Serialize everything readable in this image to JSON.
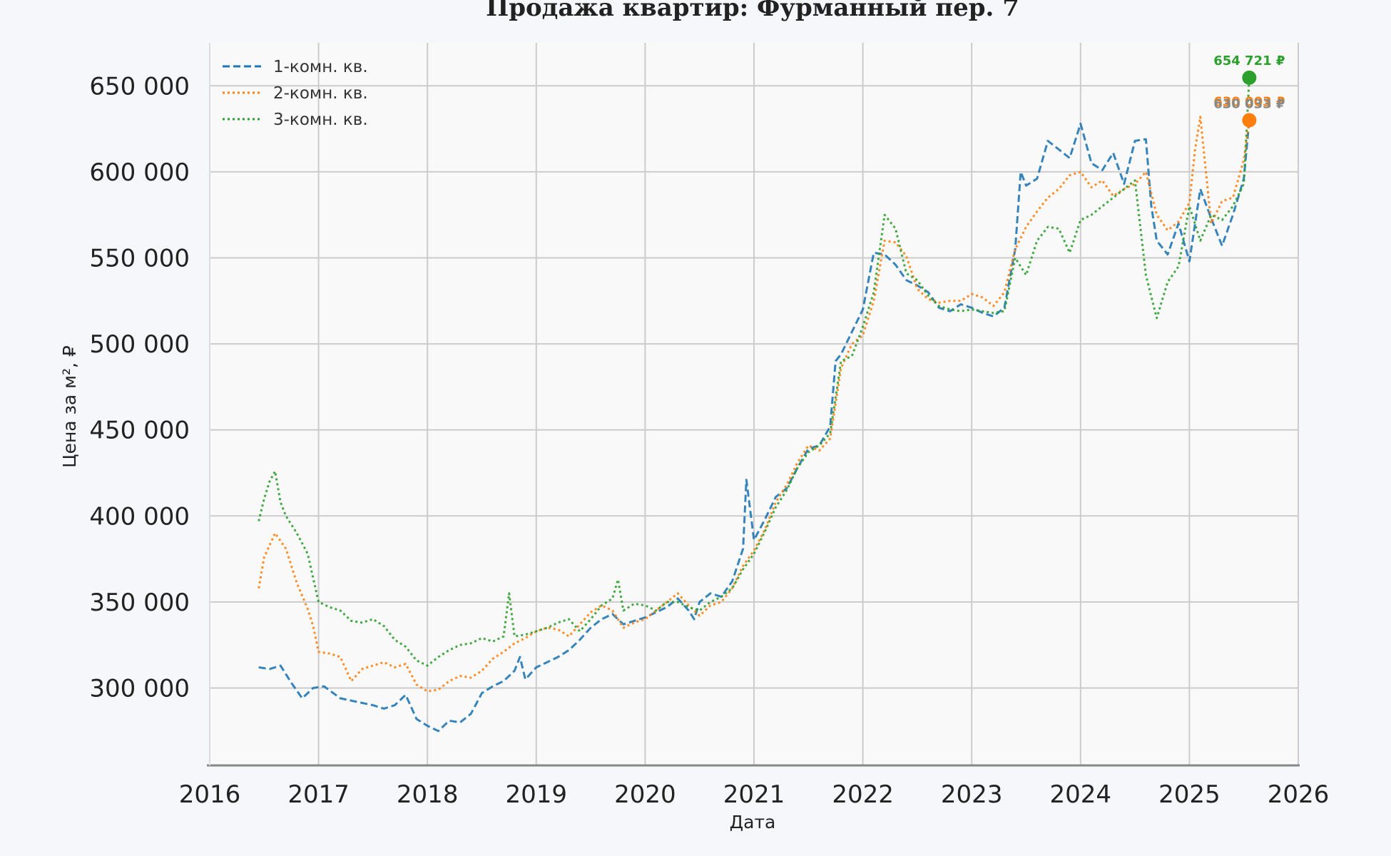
{
  "chart_data": {
    "type": "line",
    "title": "Продажа квартир: Фурманный пер. 7",
    "xlabel": "Дата",
    "ylabel": "Цена за м², ₽",
    "xlim": [
      2016,
      2026
    ],
    "ylim": [
      255000,
      675000
    ],
    "x_ticks": [
      2016,
      2017,
      2018,
      2019,
      2020,
      2021,
      2022,
      2023,
      2024,
      2025,
      2026
    ],
    "x_tick_labels": [
      "2016",
      "2017",
      "2018",
      "2019",
      "2020",
      "2021",
      "2022",
      "2023",
      "2024",
      "2025",
      "2026"
    ],
    "y_ticks": [
      300000,
      350000,
      400000,
      450000,
      500000,
      550000,
      600000,
      650000
    ],
    "y_tick_labels": [
      "300 000",
      "350 000",
      "400 000",
      "450 000",
      "500 000",
      "550 000",
      "600 000",
      "650 000"
    ],
    "grid": true,
    "legend_position": "top-left",
    "series": [
      {
        "name": "1-комн. кв.",
        "color": "#1f77b4",
        "style": "dashed",
        "x": [
          2016.45,
          2016.55,
          2016.65,
          2016.75,
          2016.85,
          2016.95,
          2017.05,
          2017.2,
          2017.35,
          2017.5,
          2017.6,
          2017.7,
          2017.8,
          2017.9,
          2018.0,
          2018.1,
          2018.2,
          2018.3,
          2018.4,
          2018.5,
          2018.6,
          2018.7,
          2018.8,
          2018.85,
          2018.9,
          2019.0,
          2019.1,
          2019.2,
          2019.3,
          2019.4,
          2019.5,
          2019.6,
          2019.7,
          2019.8,
          2019.9,
          2020.0,
          2020.1,
          2020.2,
          2020.3,
          2020.4,
          2020.45,
          2020.5,
          2020.6,
          2020.7,
          2020.8,
          2020.9,
          2020.93,
          2021.0,
          2021.1,
          2021.2,
          2021.3,
          2021.4,
          2021.5,
          2021.6,
          2021.7,
          2021.75,
          2021.8,
          2021.9,
          2022.0,
          2022.1,
          2022.2,
          2022.3,
          2022.4,
          2022.5,
          2022.6,
          2022.7,
          2022.8,
          2022.9,
          2023.0,
          2023.1,
          2023.2,
          2023.3,
          2023.4,
          2023.45,
          2023.5,
          2023.6,
          2023.7,
          2023.8,
          2023.9,
          2024.0,
          2024.1,
          2024.2,
          2024.3,
          2024.4,
          2024.5,
          2024.6,
          2024.65,
          2024.7,
          2024.8,
          2024.9,
          2025.0,
          2025.1,
          2025.2,
          2025.3,
          2025.4,
          2025.5,
          2025.55
        ],
        "values": [
          312000,
          311000,
          313000,
          303000,
          294000,
          300000,
          301000,
          294000,
          292000,
          290000,
          288000,
          290000,
          296000,
          282000,
          278000,
          275000,
          281000,
          280000,
          285000,
          297000,
          301000,
          304000,
          310000,
          318000,
          305000,
          312000,
          315000,
          318000,
          322000,
          328000,
          335000,
          340000,
          343000,
          337000,
          339000,
          341000,
          344000,
          347000,
          352000,
          345000,
          340000,
          350000,
          355000,
          353000,
          362000,
          381000,
          421000,
          386000,
          398000,
          411000,
          416000,
          428000,
          439000,
          441000,
          452000,
          490000,
          494000,
          507000,
          520000,
          553000,
          552000,
          546000,
          537000,
          534000,
          530000,
          521000,
          519000,
          523000,
          521000,
          518000,
          516000,
          521000,
          555000,
          600000,
          592000,
          596000,
          618000,
          613000,
          608000,
          628000,
          605000,
          601000,
          611000,
          593000,
          618000,
          619000,
          580000,
          560000,
          552000,
          570000,
          548000,
          590000,
          573000,
          557000,
          575000,
          596000,
          630000
        ]
      },
      {
        "name": "2-комн. кв.",
        "color": "#ff7f0e",
        "style": "dotted",
        "x": [
          2016.45,
          2016.5,
          2016.6,
          2016.7,
          2016.8,
          2016.9,
          2016.95,
          2017.0,
          2017.1,
          2017.2,
          2017.3,
          2017.4,
          2017.5,
          2017.6,
          2017.7,
          2017.8,
          2017.9,
          2018.0,
          2018.1,
          2018.2,
          2018.3,
          2018.4,
          2018.5,
          2018.6,
          2018.7,
          2018.8,
          2018.9,
          2019.0,
          2019.1,
          2019.2,
          2019.3,
          2019.4,
          2019.5,
          2019.6,
          2019.7,
          2019.8,
          2019.9,
          2020.0,
          2020.1,
          2020.2,
          2020.3,
          2020.4,
          2020.5,
          2020.6,
          2020.7,
          2020.8,
          2020.9,
          2021.0,
          2021.1,
          2021.2,
          2021.3,
          2021.4,
          2021.5,
          2021.6,
          2021.7,
          2021.8,
          2021.9,
          2022.0,
          2022.1,
          2022.2,
          2022.3,
          2022.4,
          2022.5,
          2022.6,
          2022.7,
          2022.8,
          2022.9,
          2023.0,
          2023.1,
          2023.2,
          2023.3,
          2023.4,
          2023.5,
          2023.6,
          2023.7,
          2023.8,
          2023.9,
          2024.0,
          2024.1,
          2024.2,
          2024.3,
          2024.4,
          2024.5,
          2024.6,
          2024.7,
          2024.8,
          2024.9,
          2025.0,
          2025.05,
          2025.1,
          2025.2,
          2025.3,
          2025.4,
          2025.5,
          2025.55
        ],
        "values": [
          358000,
          376000,
          390000,
          381000,
          361000,
          346000,
          336000,
          321000,
          320000,
          318000,
          304000,
          311000,
          313000,
          315000,
          312000,
          314000,
          302000,
          298000,
          299000,
          304000,
          307000,
          306000,
          310000,
          317000,
          321000,
          326000,
          329000,
          333000,
          335000,
          334000,
          330000,
          337000,
          344000,
          348000,
          345000,
          335000,
          338000,
          340000,
          345000,
          350000,
          355000,
          348000,
          342000,
          348000,
          350000,
          358000,
          371000,
          380000,
          392000,
          408000,
          418000,
          431000,
          441000,
          438000,
          445000,
          486000,
          500000,
          505000,
          525000,
          560000,
          559000,
          551000,
          532000,
          526000,
          524000,
          525000,
          525000,
          529000,
          527000,
          522000,
          530000,
          555000,
          568000,
          577000,
          585000,
          590000,
          598000,
          600000,
          591000,
          595000,
          586000,
          590000,
          593000,
          600000,
          575000,
          566000,
          571000,
          582000,
          612000,
          632000,
          570000,
          583000,
          585000,
          607000,
          630000
        ]
      },
      {
        "name": "3-комн. кв.",
        "color": "#2ca02c",
        "style": "dotted",
        "x": [
          2016.45,
          2016.5,
          2016.55,
          2016.6,
          2016.65,
          2016.7,
          2016.8,
          2016.9,
          2017.0,
          2017.1,
          2017.2,
          2017.3,
          2017.4,
          2017.5,
          2017.6,
          2017.7,
          2017.8,
          2017.9,
          2018.0,
          2018.1,
          2018.2,
          2018.3,
          2018.4,
          2018.5,
          2018.6,
          2018.7,
          2018.75,
          2018.8,
          2018.9,
          2019.0,
          2019.1,
          2019.2,
          2019.3,
          2019.4,
          2019.5,
          2019.6,
          2019.7,
          2019.75,
          2019.8,
          2019.9,
          2020.0,
          2020.1,
          2020.2,
          2020.3,
          2020.4,
          2020.5,
          2020.6,
          2020.7,
          2020.8,
          2020.9,
          2021.0,
          2021.1,
          2021.2,
          2021.3,
          2021.4,
          2021.5,
          2021.6,
          2021.7,
          2021.8,
          2021.9,
          2022.0,
          2022.1,
          2022.2,
          2022.3,
          2022.4,
          2022.5,
          2022.6,
          2022.7,
          2022.8,
          2022.9,
          2023.0,
          2023.1,
          2023.2,
          2023.3,
          2023.4,
          2023.5,
          2023.6,
          2023.7,
          2023.8,
          2023.9,
          2024.0,
          2024.1,
          2024.2,
          2024.3,
          2024.4,
          2024.5,
          2024.6,
          2024.7,
          2024.8,
          2024.9,
          2025.0,
          2025.1,
          2025.2,
          2025.3,
          2025.4,
          2025.5,
          2025.55
        ],
        "values": [
          397000,
          410000,
          420000,
          426000,
          408000,
          400000,
          390000,
          378000,
          350000,
          347000,
          345000,
          339000,
          338000,
          340000,
          336000,
          328000,
          324000,
          316000,
          313000,
          318000,
          322000,
          325000,
          326000,
          329000,
          327000,
          330000,
          355000,
          330000,
          331000,
          333000,
          335000,
          338000,
          340000,
          333000,
          340000,
          348000,
          352000,
          363000,
          345000,
          349000,
          348000,
          345000,
          350000,
          350000,
          347000,
          345000,
          350000,
          353000,
          358000,
          369000,
          378000,
          391000,
          405000,
          415000,
          428000,
          437000,
          441000,
          448000,
          490000,
          493000,
          510000,
          530000,
          575000,
          567000,
          541000,
          537000,
          528000,
          522000,
          520000,
          519000,
          520000,
          519000,
          518000,
          519000,
          550000,
          540000,
          560000,
          568000,
          567000,
          553000,
          572000,
          575000,
          580000,
          585000,
          590000,
          595000,
          540000,
          515000,
          536000,
          545000,
          580000,
          560000,
          575000,
          572000,
          580000,
          593000,
          654721
        ]
      }
    ],
    "annotations": [
      {
        "text": "654 721 ₽",
        "x": 2025.55,
        "y": 654721,
        "color": "#2ca02c"
      },
      {
        "text": "630 003 ₽",
        "x": 2025.55,
        "y": 630003,
        "color": "#ff7f0e"
      },
      {
        "text": "630 033 ₽",
        "x": 2025.55,
        "y": 630033,
        "color": "#888888"
      }
    ]
  }
}
